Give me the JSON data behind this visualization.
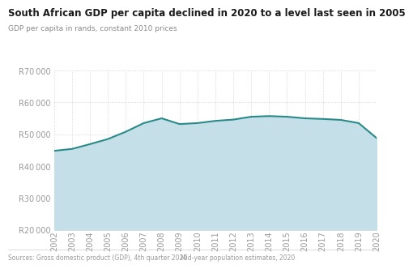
{
  "title": "South African GDP per capita declined in 2020 to a level last seen in 2005",
  "subtitle": "GDP per capita in rands, constant 2010 prices",
  "source_left": "Sources: Gross domestic product (GDP), 4th quarter 2020",
  "source_right": "Mid-year population estimates, 2020",
  "years": [
    2002,
    2003,
    2004,
    2005,
    2006,
    2007,
    2008,
    2009,
    2010,
    2011,
    2012,
    2013,
    2014,
    2015,
    2016,
    2017,
    2018,
    2019,
    2020
  ],
  "values": [
    44800,
    45400,
    46900,
    48500,
    50800,
    53500,
    55000,
    53200,
    53500,
    54200,
    54600,
    55500,
    55700,
    55500,
    55000,
    54800,
    54500,
    53500,
    48800
  ],
  "line_color": "#2a8a8a",
  "fill_color": "#c5dfe8",
  "bg_color": "#ffffff",
  "plot_bg_color": "#ffffff",
  "grid_color": "#cccccc",
  "title_color": "#1a1a1a",
  "subtitle_color": "#888888",
  "source_color": "#999999",
  "tick_color": "#999999",
  "ylim_min": 20000,
  "ylim_max": 70000,
  "yticks": [
    20000,
    30000,
    40000,
    50000,
    60000,
    70000
  ],
  "title_fontsize": 8.5,
  "subtitle_fontsize": 6.5,
  "tick_fontsize": 7.0,
  "source_fontsize": 5.5
}
